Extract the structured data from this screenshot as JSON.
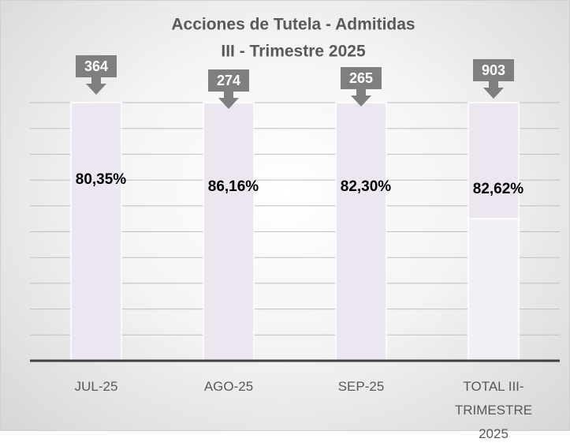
{
  "chart_data": {
    "type": "bar",
    "title": "Acciones de Tutela - Admitidas",
    "subtitle": "III - Trimestre 2025",
    "categories": [
      "JUL-25",
      "AGO-25",
      "SEP-25",
      "TOTAL III-TRIMESTRE 2025"
    ],
    "values": [
      364,
      274,
      265,
      903
    ],
    "percent_labels": [
      "80,35%",
      "86,16%",
      "82,30%",
      "82,62%"
    ],
    "color": "#ece6f1",
    "callout_color": "#7f7f7f"
  }
}
